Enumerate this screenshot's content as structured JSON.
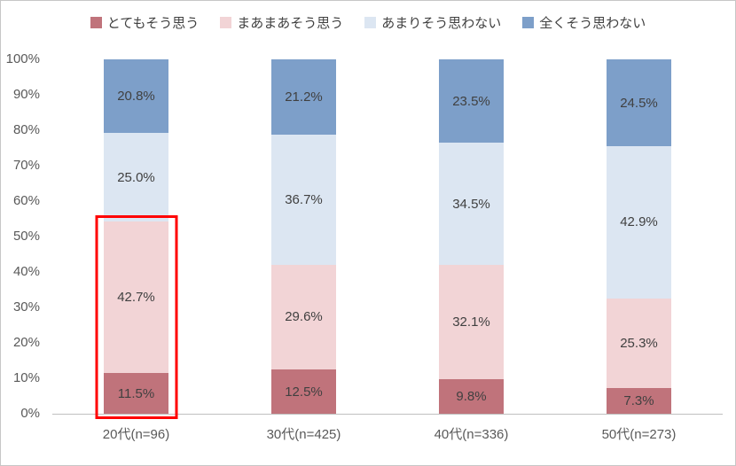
{
  "chart_data": {
    "type": "bar",
    "subtype": "stacked-100-percent",
    "categories": [
      "20代(n=96)",
      "30代(n=425)",
      "40代(n=336)",
      "50代(n=273)"
    ],
    "series": [
      {
        "name": "とてもそう思う",
        "color": "#c0737b",
        "values": [
          11.5,
          12.5,
          9.8,
          7.3
        ]
      },
      {
        "name": "まあまあそう思う",
        "color": "#f2d4d6",
        "values": [
          42.7,
          29.6,
          32.1,
          25.3
        ]
      },
      {
        "name": "あまりそう思わない",
        "color": "#dce6f2",
        "values": [
          25.0,
          36.7,
          34.5,
          42.9
        ]
      },
      {
        "name": "全くそう思わない",
        "color": "#7d9fc9",
        "values": [
          20.8,
          21.2,
          23.5,
          24.5
        ]
      }
    ],
    "y_ticks": [
      "0%",
      "10%",
      "20%",
      "30%",
      "40%",
      "50%",
      "60%",
      "70%",
      "80%",
      "90%",
      "100%"
    ],
    "ylim": [
      0,
      100
    ],
    "grid": false,
    "legend_position": "top",
    "value_suffix": "%",
    "highlight": {
      "category_index": 0,
      "series_covered": [
        "とてもそう思う",
        "まあまあそう思う"
      ],
      "total": 54.2,
      "color": "#ff0000"
    }
  },
  "colors": {
    "axis_text": "#595959",
    "value_text": "#404040",
    "frame_border": "#c6c6c6",
    "axis_line": "#bfbfbf"
  }
}
